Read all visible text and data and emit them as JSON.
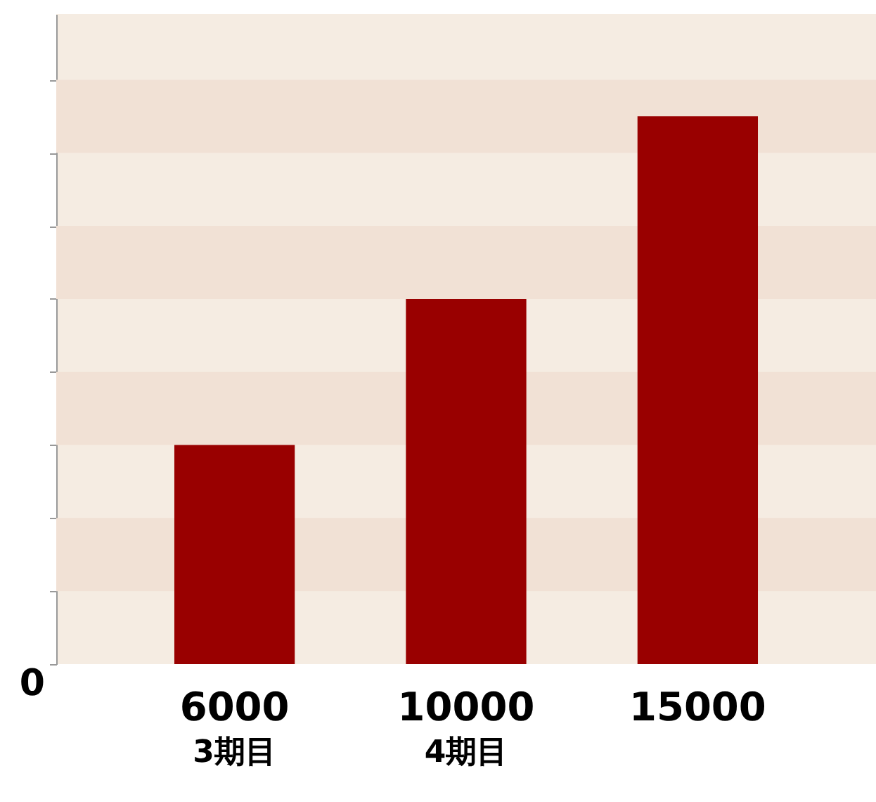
{
  "chart_data": {
    "type": "bar",
    "categories": [
      "3期目",
      "4期目",
      null
    ],
    "values": [
      6000,
      10000,
      15000
    ],
    "color": "#990000",
    "data_labels": true,
    "annotations": [
      "0"
    ],
    "ylim": [
      0,
      17800
    ],
    "yticks": [
      {
        "value": 0,
        "label": null
      },
      {
        "value": 2000,
        "label": null
      },
      {
        "value": 4000,
        "label": null
      },
      {
        "value": 6000,
        "label": null
      },
      {
        "value": 8000,
        "label": null
      },
      {
        "value": 10000,
        "label": null
      },
      {
        "value": 12000,
        "label": null
      },
      {
        "value": 14000,
        "label": null
      },
      {
        "value": 16000,
        "label": null
      }
    ],
    "bands": [
      {
        "axis": "y",
        "from": 2000,
        "to": 4000,
        "color": "#f1e1d5"
      },
      {
        "axis": "y",
        "from": 6000,
        "to": 8000,
        "color": "#f1e1d5"
      },
      {
        "axis": "y",
        "from": 10000,
        "to": 12000,
        "color": "#f1e1d5"
      },
      {
        "axis": "y",
        "from": 14000,
        "to": 16000,
        "color": "#f1e1d5"
      }
    ]
  }
}
